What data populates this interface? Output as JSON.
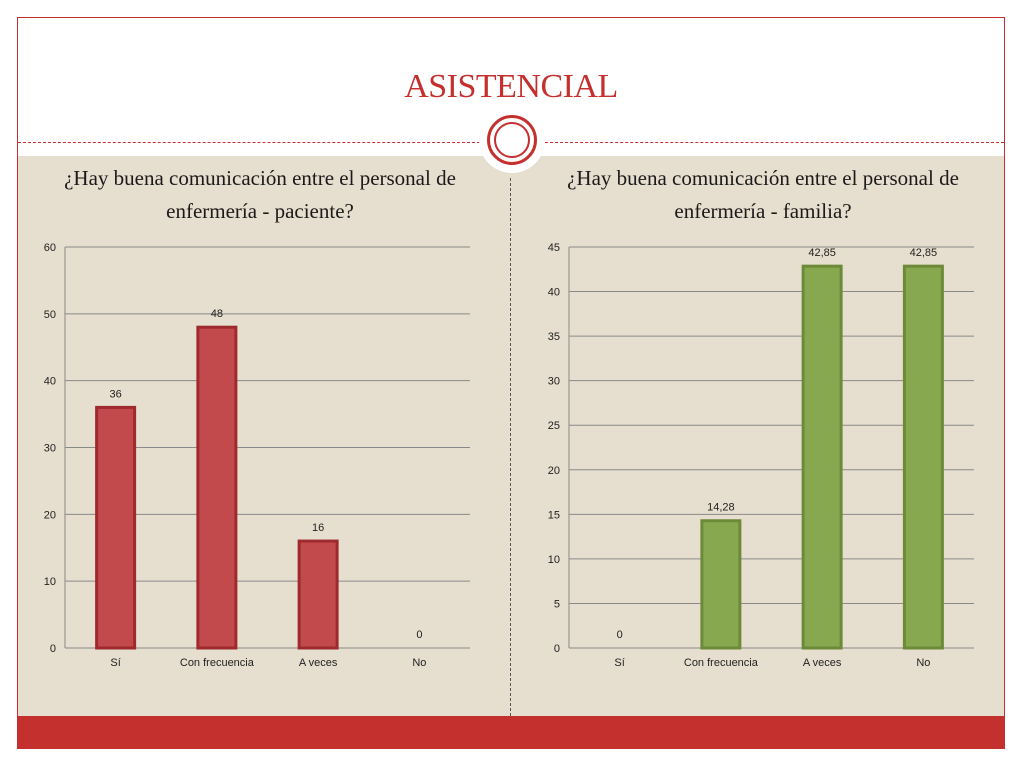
{
  "slide": {
    "title": "ASISTENCIAL",
    "colors": {
      "accent": "#c3302e",
      "panel": "#e6dece"
    }
  },
  "chart_data": [
    {
      "type": "bar",
      "title": "¿Hay buena comunicación entre el personal de enfermería - paciente?",
      "categories": [
        "Sí",
        "Con frecuencia",
        "A veces",
        "No"
      ],
      "values": [
        36,
        48,
        16,
        0
      ],
      "value_labels": [
        "36",
        "48",
        "16",
        "0"
      ],
      "ylim": [
        0,
        60
      ],
      "yticks": [
        0,
        10,
        20,
        30,
        40,
        50,
        60
      ],
      "grid": true,
      "color": "#c34a4c",
      "edge_color": "#9e2a2d"
    },
    {
      "type": "bar",
      "title": "¿Hay buena comunicación entre el personal de enfermería - familia?",
      "categories": [
        "Sí",
        "Con frecuencia",
        "A veces",
        "No"
      ],
      "values": [
        0,
        14.28,
        42.85,
        42.85
      ],
      "value_labels": [
        "0",
        "14,28",
        "42,85",
        "42,85"
      ],
      "ylim": [
        0,
        45
      ],
      "yticks": [
        0,
        5,
        10,
        15,
        20,
        25,
        30,
        35,
        40,
        45
      ],
      "grid": true,
      "color": "#88a84f",
      "edge_color": "#6c8a38"
    }
  ]
}
